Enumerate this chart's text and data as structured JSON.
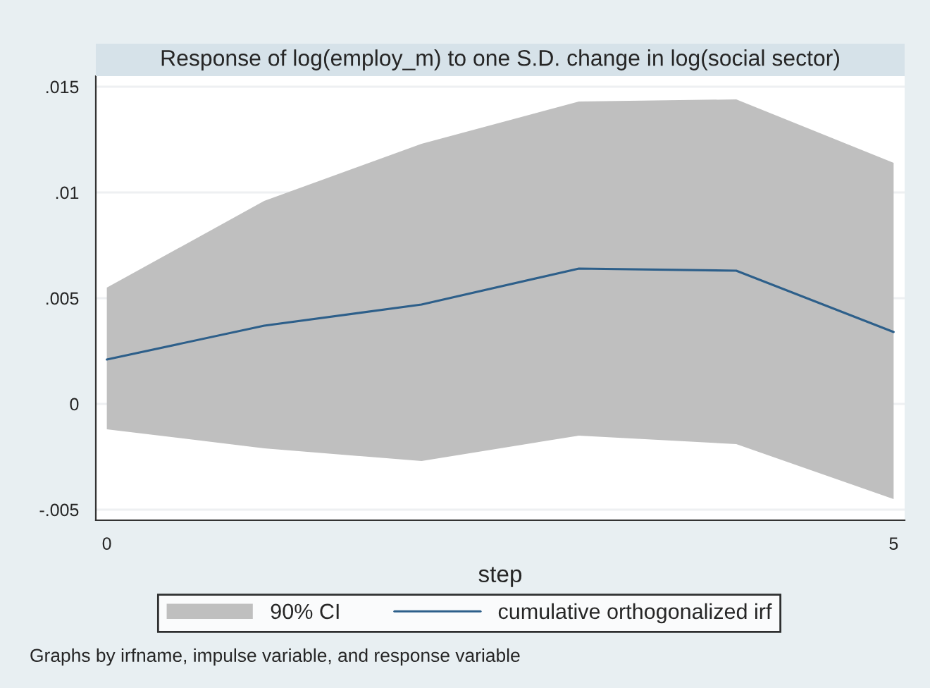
{
  "chart_data": {
    "type": "line",
    "title": "Response of log(employ_m) to one S.D. change in log(social sector)",
    "xlabel": "step",
    "x": [
      0,
      1,
      2,
      3,
      4,
      5
    ],
    "series": [
      {
        "name": "cumulative orthogonalized irf",
        "color": "#2d5f8a",
        "values": [
          0.0021,
          0.0037,
          0.0047,
          0.0064,
          0.0063,
          0.0034
        ],
        "lower": [
          -0.0012,
          -0.0021,
          -0.0027,
          -0.0015,
          -0.0019,
          -0.0045
        ],
        "upper": [
          0.0055,
          0.0096,
          0.0123,
          0.0143,
          0.0144,
          0.0114
        ]
      }
    ],
    "xlim": [
      -0.07,
      5.07
    ],
    "xticks": [
      0,
      5
    ],
    "ylim": [
      -0.0055,
      0.0155
    ],
    "yticks": [
      {
        "value": -0.005,
        "label": "-.005"
      },
      {
        "value": 0,
        "label": "0"
      },
      {
        "value": 0.005,
        "label": ".005"
      },
      {
        "value": 0.01,
        "label": ".01"
      },
      {
        "value": 0.015,
        "label": ".015"
      }
    ],
    "grid": "y",
    "legend": "bottom",
    "marker": "none",
    "line_style": "solid",
    "annotations": [
      "90% CI",
      "Graphs by irfname, impulse variable, and response variable"
    ]
  }
}
